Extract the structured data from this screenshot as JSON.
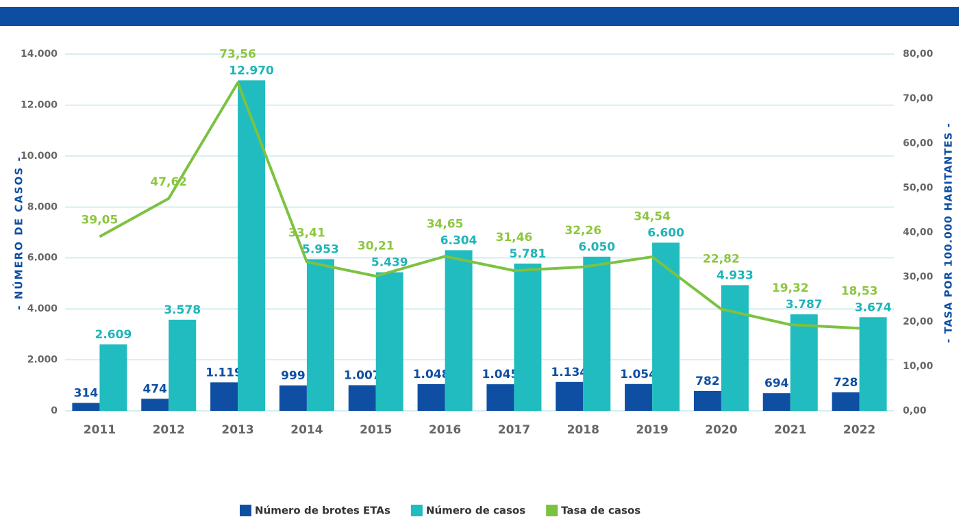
{
  "chart_data": {
    "type": "bar-line",
    "y_axis_title": "- NÚMERO DE CASOS -",
    "y2_axis_title": "- TASA POR 100.000 HABITANTES -",
    "categories": [
      "2011",
      "2012",
      "2013",
      "2014",
      "2015",
      "2016",
      "2017",
      "2018",
      "2019",
      "2020",
      "2021",
      "2022"
    ],
    "series": [
      {
        "name": "Número de brotes ETAs",
        "type": "bar",
        "color": "#0f4fa3",
        "values": [
          314,
          474,
          1119,
          999,
          1007,
          1048,
          1045,
          1134,
          1054,
          782,
          694,
          728
        ],
        "value_labels": [
          "314",
          "474",
          "1.119",
          "999",
          "1.007",
          "1.048",
          "1.045",
          "1.134",
          "1.054",
          "782",
          "694",
          "728"
        ]
      },
      {
        "name": "Número de casos",
        "type": "bar",
        "color": "#20bcbf",
        "values": [
          2609,
          3578,
          12970,
          5953,
          5439,
          6304,
          5781,
          6050,
          6600,
          4933,
          3787,
          3674
        ],
        "value_labels": [
          "2.609",
          "3.578",
          "12.970",
          "5.953",
          "5.439",
          "6.304",
          "5.781",
          "6.050",
          "6.600",
          "4.933",
          "3.787",
          "3.674"
        ]
      },
      {
        "name": "Tasa de casos",
        "type": "line",
        "axis": "y2",
        "color": "#7cc242",
        "values": [
          39.05,
          47.62,
          73.56,
          33.41,
          30.21,
          34.65,
          31.46,
          32.26,
          34.54,
          22.82,
          19.32,
          18.53
        ],
        "value_labels": [
          "39,05",
          "47,62",
          "73,56",
          "33,41",
          "30,21",
          "34,65",
          "31,46",
          "32,26",
          "34,54",
          "22,82",
          "19,32",
          "18,53"
        ]
      }
    ],
    "ylim": [
      0,
      14000
    ],
    "yticks": [
      0,
      {
        "value": 2000,
        "label": "2.000"
      },
      {
        "value": 4000,
        "label": "4.000"
      },
      {
        "value": 6000,
        "label": "6.000"
      },
      {
        "value": 8000,
        "label": "8.000"
      },
      {
        "value": 10000,
        "label": "10.000"
      },
      {
        "value": 12000,
        "label": "12.000"
      },
      {
        "value": 14000,
        "label": "14.000"
      }
    ],
    "y2lim": [
      0,
      80
    ],
    "y2ticks": [
      {
        "value": 0,
        "label": "0,00"
      },
      {
        "value": 10,
        "label": "10,00"
      },
      {
        "value": 20,
        "label": "20,00"
      },
      {
        "value": 30,
        "label": "30,00"
      },
      {
        "value": 40,
        "label": "40,00"
      },
      {
        "value": 50,
        "label": "50,00"
      },
      {
        "value": 60,
        "label": "60,00"
      },
      {
        "value": 70,
        "label": "70,00"
      },
      {
        "value": 80,
        "label": "80,00"
      }
    ],
    "grid": true
  }
}
